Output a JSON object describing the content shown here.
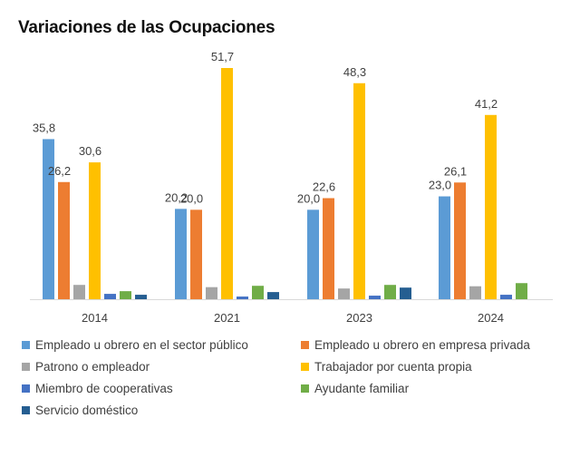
{
  "chart_data": {
    "type": "bar",
    "title": "Variaciones de las Ocupaciones",
    "categories": [
      "2014",
      "2021",
      "2023",
      "2024"
    ],
    "ylim": [
      0,
      55
    ],
    "grid": false,
    "legend_position": "bottom",
    "series": [
      {
        "name": "Empleado u obrero en el sector público",
        "color": "#5b9bd5",
        "values": [
          35.8,
          20.2,
          20.0,
          23.0
        ],
        "labels": [
          "35,8",
          "20,2",
          "20,0",
          "23,0"
        ]
      },
      {
        "name": "Empleado u obrero en empresa privada",
        "color": "#ed7d31",
        "values": [
          26.2,
          20.0,
          22.6,
          26.1
        ],
        "labels": [
          "26,2",
          "20,0",
          "22,6",
          "26,1"
        ]
      },
      {
        "name": "Patrono o empleador",
        "color": "#a5a5a5",
        "values": [
          3.2,
          2.7,
          2.4,
          2.9
        ],
        "labels": null
      },
      {
        "name": "Trabajador por cuenta propia",
        "color": "#ffc000",
        "values": [
          30.6,
          51.7,
          48.3,
          41.2
        ],
        "labels": [
          "30,6",
          "51,7",
          "48,3",
          "41,2"
        ]
      },
      {
        "name": "Miembro de cooperativas",
        "color": "#4472c4",
        "values": [
          1.2,
          0.6,
          0.8,
          1.0
        ],
        "labels": null
      },
      {
        "name": "Ayudante familiar",
        "color": "#70ad47",
        "values": [
          1.8,
          3.0,
          3.2,
          3.6
        ],
        "labels": null
      },
      {
        "name": "Servicio doméstico",
        "color": "#255e91",
        "values": [
          1.0,
          1.6,
          2.6,
          0
        ],
        "labels": null
      }
    ]
  }
}
